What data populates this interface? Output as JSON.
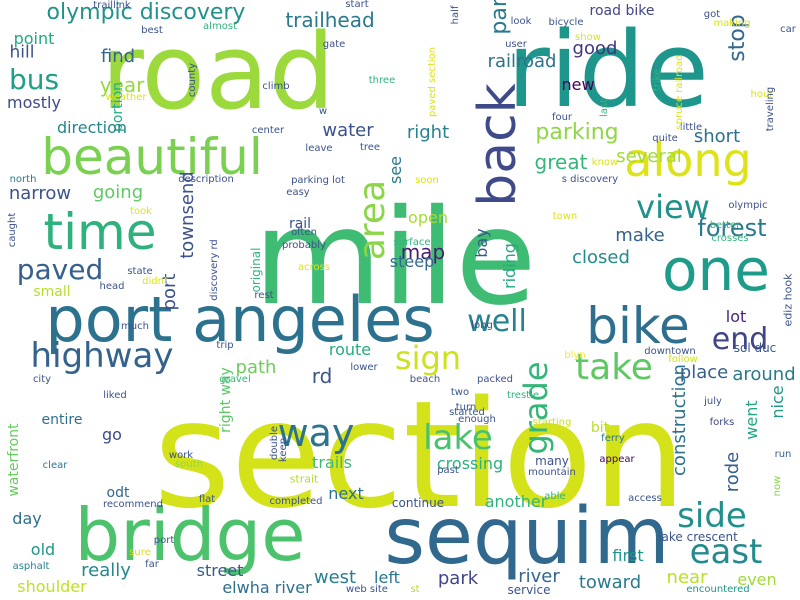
{
  "words": [
    {
      "text": "section",
      "color": "#d4e21a"
    },
    {
      "text": "mile",
      "color": "#3fbc73"
    },
    {
      "text": "road",
      "color": "#9bd93c"
    },
    {
      "text": "ride",
      "color": "#1f968b"
    },
    {
      "text": "sequim",
      "color": "#31688e"
    },
    {
      "text": "bridge",
      "color": "#4cc26c"
    },
    {
      "text": "one",
      "color": "#1e9c89"
    },
    {
      "text": "port angeles",
      "color": "#2c728e"
    },
    {
      "text": "bike",
      "color": "#2e6e8e"
    },
    {
      "text": "beautiful",
      "color": "#7ad151"
    },
    {
      "text": "time",
      "color": "#2db27d"
    },
    {
      "text": "along",
      "color": "#dde318"
    },
    {
      "text": "back",
      "color": "#3e4a89"
    },
    {
      "text": "highway",
      "color": "#33628d"
    },
    {
      "text": "way",
      "color": "#2c738e"
    },
    {
      "text": "east",
      "color": "#238a8d"
    },
    {
      "text": "side",
      "color": "#21908d"
    },
    {
      "text": "take",
      "color": "#5ec962"
    },
    {
      "text": "paved",
      "color": "#355f8d"
    },
    {
      "text": "area",
      "color": "#8bd646"
    },
    {
      "text": "view",
      "color": "#21918c"
    },
    {
      "text": "end",
      "color": "#414487"
    },
    {
      "text": "lake",
      "color": "#4ac16d"
    },
    {
      "text": "grade",
      "color": "#34b679"
    },
    {
      "text": "well",
      "color": "#26828e"
    },
    {
      "text": "sign",
      "color": "#cde11d"
    },
    {
      "text": "forest",
      "color": "#2a788e"
    },
    {
      "text": "olympic discovery",
      "color": "#21918c"
    },
    {
      "text": "bus",
      "color": "#1f9e89"
    },
    {
      "text": "trailhead",
      "color": "#2a788e"
    },
    {
      "text": "stop",
      "color": "#31688e"
    },
    {
      "text": "part",
      "color": "#2a788e"
    },
    {
      "text": "road bike",
      "color": "#404688"
    },
    {
      "text": "railroad",
      "color": "#2c738e"
    },
    {
      "text": "point",
      "color": "#22a884"
    },
    {
      "text": "hill",
      "color": "#3b528b"
    },
    {
      "text": "find",
      "color": "#33638d"
    },
    {
      "text": "year",
      "color": "#98d83e"
    },
    {
      "text": "mostly",
      "color": "#3e4989"
    },
    {
      "text": "portion",
      "color": "#25ac82"
    },
    {
      "text": "direction",
      "color": "#25858e"
    },
    {
      "text": "water",
      "color": "#3b528b"
    },
    {
      "text": "right",
      "color": "#26828e"
    },
    {
      "text": "parking",
      "color": "#8fd744"
    },
    {
      "text": "short",
      "color": "#2d708e"
    },
    {
      "text": "several",
      "color": "#9fda3a"
    },
    {
      "text": "good",
      "color": "#453581"
    },
    {
      "text": "new",
      "color": "#440154"
    },
    {
      "text": "going",
      "color": "#5ec962"
    },
    {
      "text": "narrow",
      "color": "#3b528b"
    },
    {
      "text": "townsend",
      "color": "#3b528b"
    },
    {
      "text": "port",
      "color": "#3b528b"
    },
    {
      "text": "great",
      "color": "#35b779"
    },
    {
      "text": "see",
      "color": "#2a788e"
    },
    {
      "text": "map",
      "color": "#481d6f"
    },
    {
      "text": "open",
      "color": "#a8db34"
    },
    {
      "text": "bay",
      "color": "#375a8c"
    },
    {
      "text": "make",
      "color": "#33628d"
    },
    {
      "text": "closed",
      "color": "#228b8d"
    },
    {
      "text": "steep",
      "color": "#31688e"
    },
    {
      "text": "rail",
      "color": "#3b528b"
    },
    {
      "text": "small",
      "color": "#b5de2b"
    },
    {
      "text": "route",
      "color": "#25ab82"
    },
    {
      "text": "path",
      "color": "#6ccd5a"
    },
    {
      "text": "rd",
      "color": "#39558c"
    },
    {
      "text": "place",
      "color": "#355f8d"
    },
    {
      "text": "around",
      "color": "#29798e"
    },
    {
      "text": "lot",
      "color": "#482576"
    },
    {
      "text": "nice",
      "color": "#1f978b"
    },
    {
      "text": "went",
      "color": "#22a785"
    },
    {
      "text": "rode",
      "color": "#355e8d"
    },
    {
      "text": "construction",
      "color": "#2c728e"
    },
    {
      "text": "riding",
      "color": "#22a884"
    },
    {
      "text": "bit",
      "color": "#bade28"
    },
    {
      "text": "go",
      "color": "#3e4a89"
    },
    {
      "text": "entire",
      "color": "#2d708e"
    },
    {
      "text": "crossing",
      "color": "#2ab07f"
    },
    {
      "text": "trails",
      "color": "#3dbc74"
    },
    {
      "text": "waterfront",
      "color": "#65cb5e"
    },
    {
      "text": "right way",
      "color": "#58c765"
    },
    {
      "text": "next",
      "color": "#2d718e"
    },
    {
      "text": "another",
      "color": "#2fb47c"
    },
    {
      "text": "continue",
      "color": "#3b528b"
    },
    {
      "text": "day",
      "color": "#2d718e"
    },
    {
      "text": "odt",
      "color": "#32658e"
    },
    {
      "text": "old",
      "color": "#1f958b"
    },
    {
      "text": "really",
      "color": "#24878e"
    },
    {
      "text": "street",
      "color": "#38598c"
    },
    {
      "text": "park",
      "color": "#3f4788"
    },
    {
      "text": "west",
      "color": "#287d8e"
    },
    {
      "text": "left",
      "color": "#2a788e"
    },
    {
      "text": "river",
      "color": "#31688e"
    },
    {
      "text": "elwha river",
      "color": "#2e6e8e"
    },
    {
      "text": "shoulder",
      "color": "#c2df23"
    },
    {
      "text": "toward",
      "color": "#287c8e"
    },
    {
      "text": "near",
      "color": "#bddf26"
    },
    {
      "text": "first",
      "color": "#1f978b"
    },
    {
      "text": "even",
      "color": "#a2da37"
    },
    {
      "text": "lake crescent",
      "color": "#3b528b"
    },
    {
      "text": "service",
      "color": "#3b528b"
    },
    {
      "text": "web site",
      "color": "#3b528b"
    },
    {
      "text": "encountered",
      "color": "#1f968b"
    },
    {
      "text": "sol duc",
      "color": "#38588c"
    },
    {
      "text": "ediz hook",
      "color": "#3b528b"
    },
    {
      "text": "forks",
      "color": "#3e4989"
    },
    {
      "text": "run",
      "color": "#355f8d"
    },
    {
      "text": "now",
      "color": "#89d548"
    },
    {
      "text": "ferry",
      "color": "#2a788e"
    },
    {
      "text": "appear",
      "color": "#440154"
    },
    {
      "text": "blyn",
      "color": "#fde725"
    },
    {
      "text": "many",
      "color": "#3b528b"
    },
    {
      "text": "past",
      "color": "#3b528b"
    },
    {
      "text": "mountain",
      "color": "#3b528b"
    },
    {
      "text": "able",
      "color": "#2fb47c"
    },
    {
      "text": "access",
      "color": "#3b528b"
    },
    {
      "text": "completed",
      "color": "#3b528b"
    },
    {
      "text": "flat",
      "color": "#3b528b"
    },
    {
      "text": "work",
      "color": "#3b528b"
    },
    {
      "text": "south",
      "color": "#90d743"
    },
    {
      "text": "double",
      "color": "#3b528b"
    },
    {
      "text": "keep",
      "color": "#3b528b"
    },
    {
      "text": "strait",
      "color": "#b4de2c"
    },
    {
      "text": "clear",
      "color": "#2a788e"
    },
    {
      "text": "recommend",
      "color": "#3b528b"
    },
    {
      "text": "sure",
      "color": "#d2e21b"
    },
    {
      "text": "asphalt",
      "color": "#26818e"
    },
    {
      "text": "far",
      "color": "#3b528b"
    },
    {
      "text": "port",
      "color": "#3b528b"
    },
    {
      "text": "st",
      "color": "#b5de2b"
    },
    {
      "text": "trip",
      "color": "#3b528b"
    },
    {
      "text": "gravel",
      "color": "#35b779"
    },
    {
      "text": "liked",
      "color": "#3b528b"
    },
    {
      "text": "city",
      "color": "#3b528b"
    },
    {
      "text": "lower",
      "color": "#3b528b"
    },
    {
      "text": "beach",
      "color": "#3b528b"
    },
    {
      "text": "packed",
      "color": "#3b528b"
    },
    {
      "text": "two",
      "color": "#3b528b"
    },
    {
      "text": "turn",
      "color": "#3b528b"
    },
    {
      "text": "started",
      "color": "#3b528b"
    },
    {
      "text": "enough",
      "color": "#3b528b"
    },
    {
      "text": "starting",
      "color": "#c8e020"
    },
    {
      "text": "trestle",
      "color": "#2fb47c"
    },
    {
      "text": "long",
      "color": "#3b528b"
    },
    {
      "text": "downtown",
      "color": "#3b528b"
    },
    {
      "text": "follow",
      "color": "#d2e21b"
    },
    {
      "text": "july",
      "color": "#3b528b"
    },
    {
      "text": "rest",
      "color": "#3b528b"
    },
    {
      "text": "much",
      "color": "#3b528b"
    },
    {
      "text": "head",
      "color": "#3b528b"
    },
    {
      "text": "didnt",
      "color": "#dde318"
    },
    {
      "text": "state",
      "color": "#3b528b"
    },
    {
      "text": "across",
      "color": "#dde318"
    },
    {
      "text": "original",
      "color": "#2fb47c"
    },
    {
      "text": "probably",
      "color": "#3b528b"
    },
    {
      "text": "often",
      "color": "#3b528b"
    },
    {
      "text": "surface",
      "color": "#2fb47c"
    },
    {
      "text": "discovery rd",
      "color": "#3b528b"
    },
    {
      "text": "took",
      "color": "#dde318"
    },
    {
      "text": "description",
      "color": "#3b528b"
    },
    {
      "text": "north",
      "color": "#2a788e"
    },
    {
      "text": "caught",
      "color": "#3b528b"
    },
    {
      "text": "easy",
      "color": "#3b528b"
    },
    {
      "text": "parking lot",
      "color": "#3b528b"
    },
    {
      "text": "leave",
      "color": "#3b528b"
    },
    {
      "text": "center",
      "color": "#3b528b"
    },
    {
      "text": "tree",
      "color": "#3b528b"
    },
    {
      "text": "soon",
      "color": "#dde318"
    },
    {
      "text": "s discovery",
      "color": "#3b528b"
    },
    {
      "text": "know",
      "color": "#dde318"
    },
    {
      "text": "quite",
      "color": "#3b528b"
    },
    {
      "text": "little",
      "color": "#3b528b"
    },
    {
      "text": "spruce railroad",
      "color": "#dde318"
    },
    {
      "text": "olympic",
      "color": "#3b528b"
    },
    {
      "text": "better",
      "color": "#2fb47c"
    },
    {
      "text": "crosses",
      "color": "#2fb47c"
    },
    {
      "text": "town",
      "color": "#dde318"
    },
    {
      "text": "hour",
      "color": "#dde318"
    },
    {
      "text": "traveling",
      "color": "#3b528b"
    },
    {
      "text": "trike",
      "color": "#2fb47c"
    },
    {
      "text": "last",
      "color": "#2fb47c"
    },
    {
      "text": "four",
      "color": "#3b528b"
    },
    {
      "text": "look",
      "color": "#3b528b"
    },
    {
      "text": "bicycle",
      "color": "#3b528b"
    },
    {
      "text": "show",
      "color": "#dde318"
    },
    {
      "text": "user",
      "color": "#3b528b"
    },
    {
      "text": "half",
      "color": "#3b528b"
    },
    {
      "text": "paved section",
      "color": "#dde318"
    },
    {
      "text": "start",
      "color": "#3b528b"
    },
    {
      "text": "gate",
      "color": "#3b528b"
    },
    {
      "text": "three",
      "color": "#2fb47c"
    },
    {
      "text": "county",
      "color": "#3b528b"
    },
    {
      "text": "climb",
      "color": "#3b528b"
    },
    {
      "text": "weather",
      "color": "#dde318"
    },
    {
      "text": "best",
      "color": "#3b528b"
    },
    {
      "text": "almost",
      "color": "#2fb47c"
    },
    {
      "text": "traillink",
      "color": "#3b528b"
    },
    {
      "text": "got",
      "color": "#3b528b"
    },
    {
      "text": "making",
      "color": "#dde318"
    },
    {
      "text": "car",
      "color": "#3b528b"
    },
    {
      "text": "w",
      "color": "#3b528b"
    }
  ]
}
